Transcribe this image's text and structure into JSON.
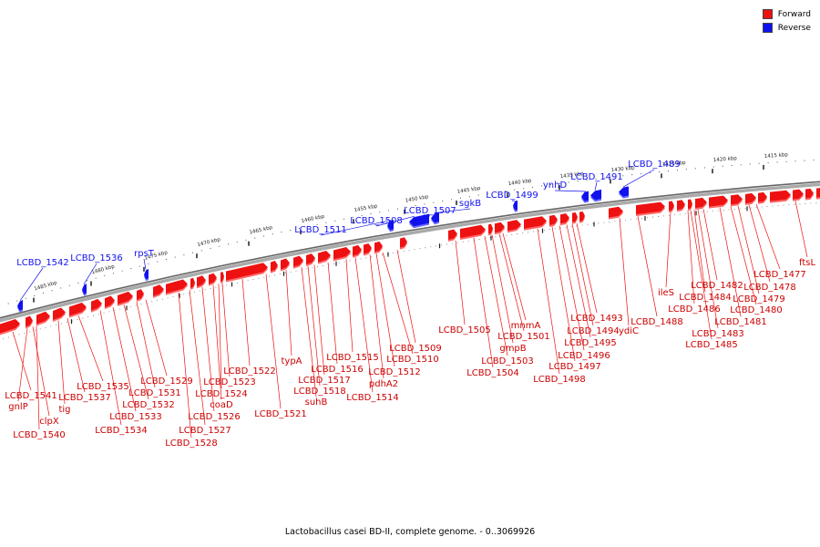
{
  "legend": {
    "forward_label": "Forward",
    "reverse_label": "Reverse",
    "forward_color": "#ee1111",
    "reverse_color": "#1111ee"
  },
  "caption": "Lactobacillus casei BD-II, complete genome. - 0..3069926",
  "ticks": [
    {
      "label": "1485 kbp"
    },
    {
      "label": "1480 kbp"
    },
    {
      "label": "1475 kbp"
    },
    {
      "label": "1470 kbp"
    },
    {
      "label": "1465 kbp"
    },
    {
      "label": "1460 kbp"
    },
    {
      "label": "1455 kbp"
    },
    {
      "label": "1450 kbp"
    },
    {
      "label": "1445 kbp"
    },
    {
      "label": "1440 kbp"
    },
    {
      "label": "1435 kbp"
    },
    {
      "label": "1430 kbp"
    },
    {
      "label": "1425 kbp"
    },
    {
      "label": "1420 kbp"
    },
    {
      "label": "1415 kbp"
    }
  ],
  "reverse_genes": [
    {
      "name": "LCBD_1542"
    },
    {
      "name": "LCBD_1536"
    },
    {
      "name": "rpsT"
    },
    {
      "name": "LCBD_1511"
    },
    {
      "name": "LCBD_1508"
    },
    {
      "name": "LCBD_1507"
    },
    {
      "name": "sgkB"
    },
    {
      "name": "LCBD_1499"
    },
    {
      "name": "ynhD"
    },
    {
      "name": "LCBD_1491"
    },
    {
      "name": "LCBD_1489"
    }
  ],
  "forward_genes": [
    {
      "name": "LCBD_1541"
    },
    {
      "name": "gnlP"
    },
    {
      "name": "clpX"
    },
    {
      "name": "LCBD_1540"
    },
    {
      "name": "tig"
    },
    {
      "name": "LCBD_1537"
    },
    {
      "name": "LCBD_1535"
    },
    {
      "name": "LCBD_1534"
    },
    {
      "name": "LCBD_1533"
    },
    {
      "name": "LCBD_1532"
    },
    {
      "name": "LCBD_1531"
    },
    {
      "name": "LCBD_1529"
    },
    {
      "name": "LCBD_1528"
    },
    {
      "name": "LCBD_1527"
    },
    {
      "name": "LCBD_1526"
    },
    {
      "name": "coaD"
    },
    {
      "name": "LCBD_1524"
    },
    {
      "name": "LCBD_1523"
    },
    {
      "name": "LCBD_1522"
    },
    {
      "name": "LCBD_1521"
    },
    {
      "name": "typA"
    },
    {
      "name": "suhB"
    },
    {
      "name": "LCBD_1518"
    },
    {
      "name": "LCBD_1517"
    },
    {
      "name": "LCBD_1516"
    },
    {
      "name": "LCBD_1515"
    },
    {
      "name": "LCBD_1514"
    },
    {
      "name": "pdhA2"
    },
    {
      "name": "LCBD_1512"
    },
    {
      "name": "LCBD_1510"
    },
    {
      "name": "LCBD_1509"
    },
    {
      "name": "LCBD_1505"
    },
    {
      "name": "LCBD_1504"
    },
    {
      "name": "LCBD_1503"
    },
    {
      "name": "gmpB"
    },
    {
      "name": "LCBD_1501"
    },
    {
      "name": "mnmA"
    },
    {
      "name": "LCBD_1498"
    },
    {
      "name": "LCBD_1497"
    },
    {
      "name": "LCBD_1496"
    },
    {
      "name": "LCBD_1495"
    },
    {
      "name": "LCBD_1494"
    },
    {
      "name": "LCBD_1493"
    },
    {
      "name": "ydiC"
    },
    {
      "name": "LCBD_1488"
    },
    {
      "name": "ileS"
    },
    {
      "name": "LCBD_1486"
    },
    {
      "name": "LCBD_1485"
    },
    {
      "name": "LCBD_1484"
    },
    {
      "name": "LCBD_1483"
    },
    {
      "name": "LCBD_1482"
    },
    {
      "name": "LCBD_1481"
    },
    {
      "name": "LCBD_1480"
    },
    {
      "name": "LCBD_1479"
    },
    {
      "name": "LCBD_1478"
    },
    {
      "name": "LCBD_1477"
    },
    {
      "name": "ftsL"
    }
  ]
}
